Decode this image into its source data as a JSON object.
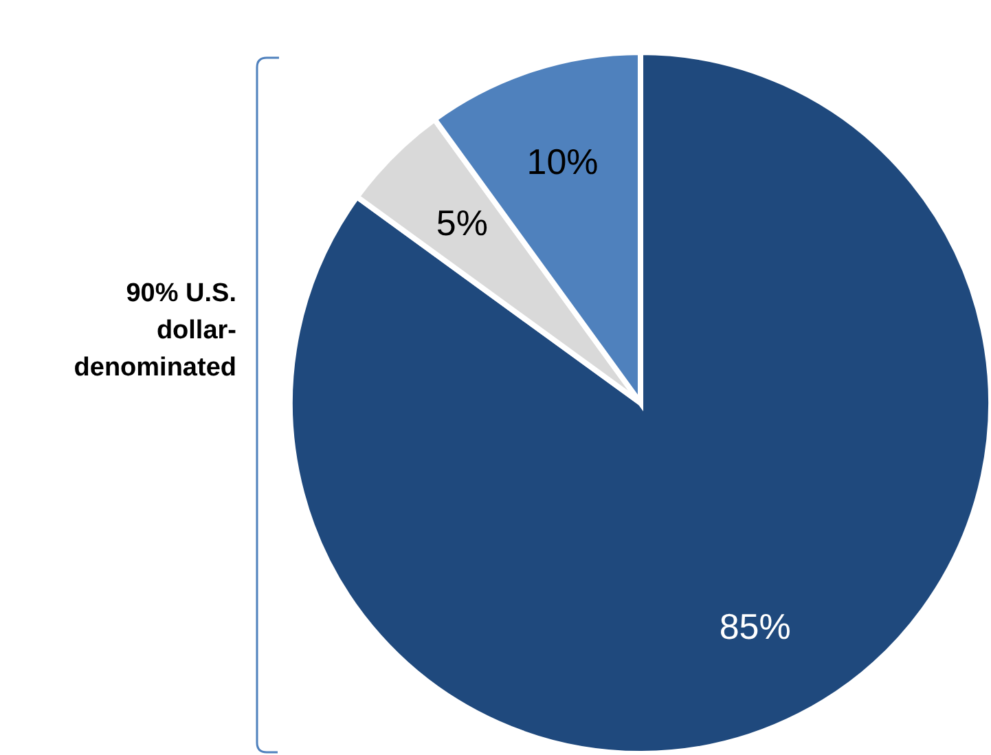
{
  "chart_data": {
    "type": "pie",
    "categories": [
      null,
      null,
      null
    ],
    "values": [
      85,
      5,
      10
    ],
    "colors": [
      "#1f497d",
      "#d9d9d9",
      "#4f81bd"
    ],
    "value_labels": [
      "85%",
      "5%",
      "10%"
    ],
    "annotations": [
      "90% U.S. dollar-denominated"
    ]
  }
}
